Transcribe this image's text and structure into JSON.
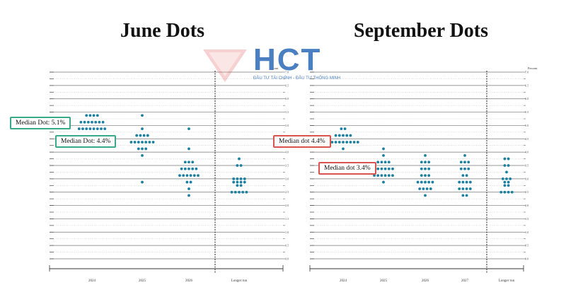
{
  "titles": {
    "left": "June Dots",
    "right": "September Dots"
  },
  "watermark": {
    "text": "HCT",
    "sub": "ĐẦU TƯ TÀI CHÍNH - ĐẦU TƯ THÔNG MINH",
    "color": "#4a7fc1",
    "accent": "#e45c5c"
  },
  "colors": {
    "dot": "#1a7fa0",
    "green_border": "#3aa88a",
    "red_border": "#d9534f"
  },
  "chart_data": [
    {
      "type": "scatter",
      "title": "June Dots",
      "ylabel": "Percent",
      "ylim": [
        0,
        7
      ],
      "yticks": [
        "7.0",
        "6.5",
        "6.0",
        "5.5",
        "5.0",
        "4.5",
        "4.0",
        "3.5",
        "3.0",
        "2.5",
        "2.0",
        "1.5",
        "1.0",
        "0.5",
        "0.0"
      ],
      "categories": [
        "2024",
        "2025",
        "2026",
        "Longer run"
      ],
      "annotations": [
        {
          "label": "Median Dot: 5.1%",
          "category": "2024",
          "value": 5.1
        },
        {
          "label": "Median Dot: 4.4%",
          "category": "2025",
          "value": 4.4
        }
      ],
      "dots": [
        {
          "category": "2024",
          "levels": [
            [
              5.375,
              4
            ],
            [
              5.125,
              7
            ],
            [
              4.875,
              8
            ]
          ]
        },
        {
          "category": "2025",
          "levels": [
            [
              5.375,
              1
            ],
            [
              4.875,
              1
            ],
            [
              4.625,
              4
            ],
            [
              4.375,
              7
            ],
            [
              4.125,
              3
            ],
            [
              3.875,
              1
            ],
            [
              2.875,
              1
            ]
          ]
        },
        {
          "category": "2026",
          "levels": [
            [
              4.875,
              1
            ],
            [
              4.125,
              1
            ],
            [
              3.625,
              3
            ],
            [
              3.375,
              5
            ],
            [
              3.125,
              6
            ],
            [
              2.875,
              2
            ],
            [
              2.625,
              1
            ],
            [
              2.375,
              1
            ]
          ]
        },
        {
          "category": "Longer run",
          "levels": [
            [
              3.75,
              1
            ],
            [
              3.5,
              2
            ],
            [
              3.0,
              4
            ],
            [
              2.875,
              4
            ],
            [
              2.75,
              2
            ],
            [
              2.5,
              5
            ]
          ]
        }
      ]
    },
    {
      "type": "scatter",
      "title": "September Dots",
      "ylabel": "Percent",
      "ylim": [
        0,
        7
      ],
      "yticks": [
        "7.0",
        "6.5",
        "6.0",
        "5.5",
        "5.0",
        "4.5",
        "4.0",
        "3.5",
        "3.0",
        "2.5",
        "2.0",
        "1.5",
        "1.0",
        "0.5",
        "0.0"
      ],
      "categories": [
        "2024",
        "2025",
        "2026",
        "2027",
        "Longer run"
      ],
      "annotations": [
        {
          "label": "Median dot 4.4%",
          "category": "2024",
          "value": 4.4
        },
        {
          "label": "Median dot 3.4%",
          "category": "2025",
          "value": 3.4
        }
      ],
      "dots": [
        {
          "category": "2024",
          "levels": [
            [
              4.875,
              2
            ],
            [
              4.625,
              5
            ],
            [
              4.375,
              9
            ],
            [
              4.125,
              1
            ]
          ]
        },
        {
          "category": "2025",
          "levels": [
            [
              4.125,
              1
            ],
            [
              3.875,
              1
            ],
            [
              3.625,
              4
            ],
            [
              3.375,
              6
            ],
            [
              3.125,
              6
            ],
            [
              2.875,
              1
            ]
          ]
        },
        {
          "category": "2026",
          "levels": [
            [
              3.875,
              1
            ],
            [
              3.625,
              3
            ],
            [
              3.375,
              3
            ],
            [
              3.125,
              3
            ],
            [
              2.875,
              5
            ],
            [
              2.625,
              4
            ],
            [
              2.375,
              1
            ]
          ]
        },
        {
          "category": "2027",
          "levels": [
            [
              3.875,
              1
            ],
            [
              3.625,
              3
            ],
            [
              3.375,
              3
            ],
            [
              3.125,
              2
            ],
            [
              2.875,
              4
            ],
            [
              2.625,
              4
            ],
            [
              2.375,
              2
            ]
          ]
        },
        {
          "category": "Longer run",
          "levels": [
            [
              3.75,
              2
            ],
            [
              3.5,
              2
            ],
            [
              3.25,
              1
            ],
            [
              3.0,
              3
            ],
            [
              2.875,
              2
            ],
            [
              2.75,
              2
            ],
            [
              2.5,
              4
            ]
          ]
        }
      ]
    }
  ]
}
